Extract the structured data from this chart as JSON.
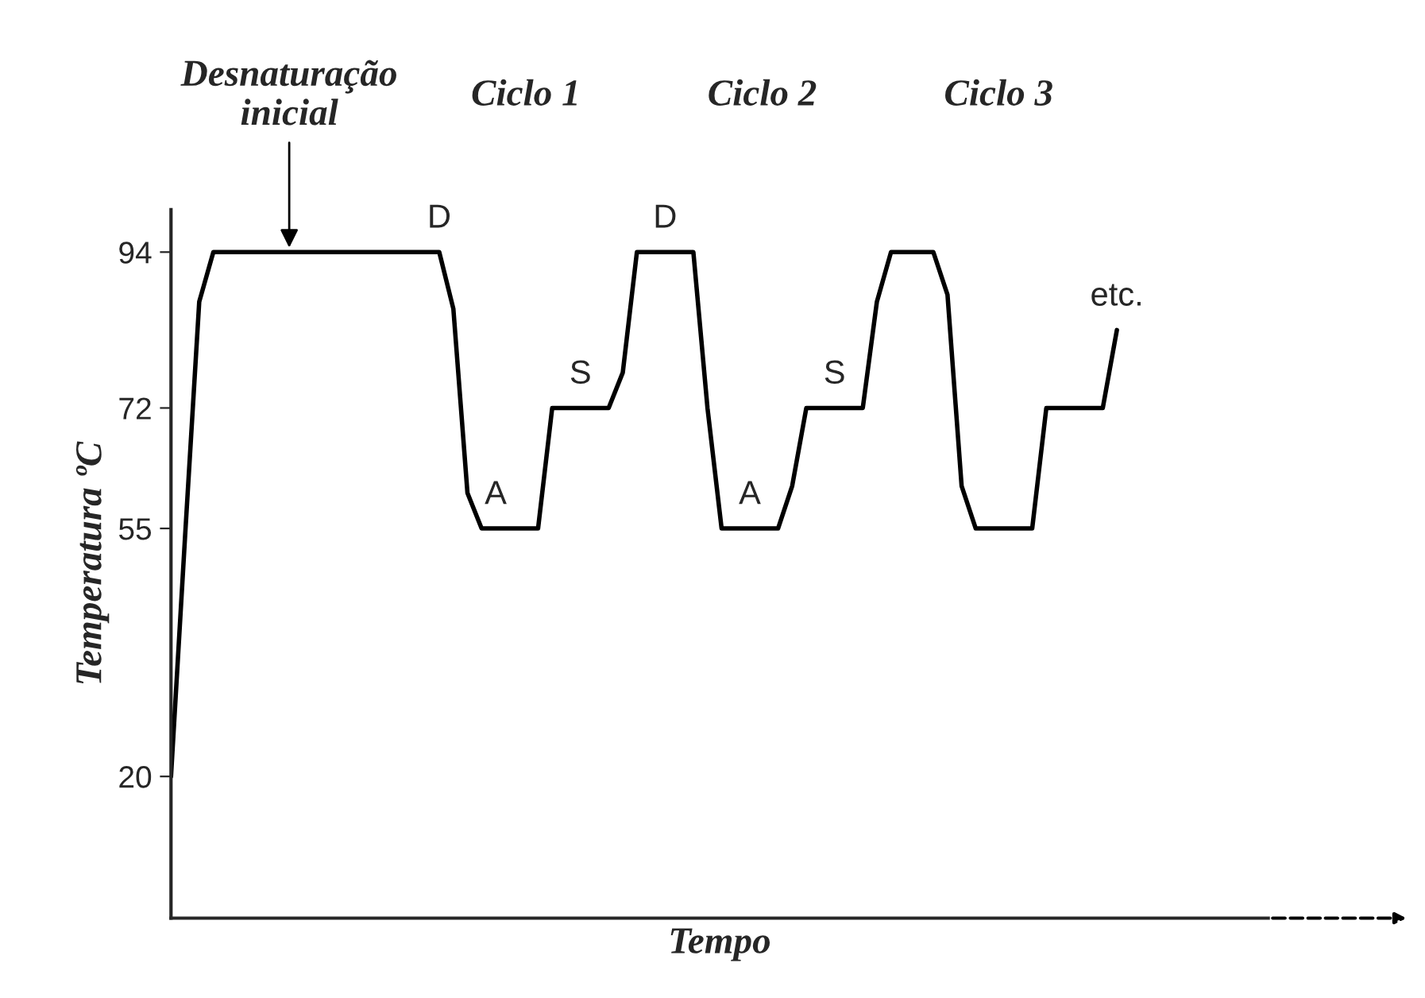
{
  "chart_data": {
    "type": "line",
    "xlabel": "Tempo",
    "ylabel": "Temperatura ºC",
    "categories": [
      null,
      null,
      null,
      null,
      null,
      null,
      null,
      null,
      null,
      null,
      null,
      null,
      null,
      null,
      null,
      null,
      null,
      null,
      null,
      null,
      null,
      null,
      null,
      null,
      null,
      null,
      null,
      null,
      null,
      null,
      null,
      null,
      null,
      null,
      null,
      null,
      null,
      null,
      null,
      null,
      null,
      null,
      null,
      null,
      null,
      null,
      null,
      null,
      null,
      null,
      null,
      null,
      null,
      null,
      null,
      null,
      null,
      null,
      null,
      null,
      null,
      null,
      null,
      null,
      null,
      null,
      null,
      null
    ],
    "series": [
      {
        "color": "#000000",
        "values": [
          20,
          54,
          87,
          94,
          94,
          94,
          94,
          94,
          94,
          94,
          94,
          94,
          94,
          94,
          94,
          94,
          94,
          94,
          94,
          94,
          86,
          60,
          55,
          55,
          55,
          55,
          55,
          72,
          72,
          72,
          72,
          72,
          77,
          94,
          94,
          94,
          94,
          94,
          72,
          55,
          55,
          55,
          55,
          55,
          61,
          72,
          72,
          72,
          72,
          72,
          87,
          94,
          94,
          94,
          94,
          88,
          61,
          55,
          55,
          55,
          55,
          55,
          72,
          72,
          72,
          72,
          72,
          83
        ],
        "value_labels": [
          null,
          null,
          null,
          null,
          null,
          null,
          null,
          null,
          null,
          null,
          null,
          null,
          null,
          null,
          null,
          null,
          null,
          null,
          null,
          "D",
          null,
          null,
          null,
          "A",
          null,
          null,
          null,
          null,
          null,
          "S",
          null,
          null,
          null,
          null,
          null,
          "D",
          null,
          null,
          null,
          null,
          null,
          "A",
          null,
          null,
          null,
          null,
          null,
          "S",
          null,
          null,
          null,
          null,
          null,
          null,
          null,
          null,
          null,
          null,
          null,
          null,
          null,
          null,
          null,
          null,
          null,
          null,
          null,
          "etc."
        ]
      }
    ],
    "ylim": [
      0,
      100
    ],
    "yticks": [
      20,
      55,
      72,
      94
    ],
    "tick_labels": "y",
    "grid": false,
    "legend": false,
    "marker": "none",
    "line_style": "solid",
    "annotations": [
      "Desnaturação\ninicial",
      "Ciclo 1",
      "Ciclo 2",
      "Ciclo 3"
    ]
  }
}
